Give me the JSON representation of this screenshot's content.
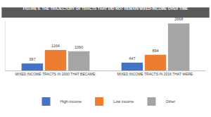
{
  "chart_data": {
    "type": "bar",
    "title": "FIGURE 6. THE TRAJECTORY OF TRACTS THAT DID NOT REMAIN MIXED-INCOME OVER TIME",
    "categories": [
      "MIXED INCOME TRACTS IN 2000 THAT BECAME:",
      "MIXED INCOME TRACTS IN 2016 THAT WERE:"
    ],
    "series": [
      {
        "name": "High income",
        "color": "#4472c4",
        "values": [
          397,
          447
        ]
      },
      {
        "name": "Low income",
        "color": "#ed7d31",
        "values": [
          1164,
          894
        ]
      },
      {
        "name": "Other",
        "color": "#a5a5a5",
        "values": [
          1090,
          2668
        ]
      }
    ],
    "ylim": [
      0,
      2800
    ],
    "data_labels": true,
    "tick_labels": "x",
    "grid": false,
    "legend": "bottom"
  }
}
